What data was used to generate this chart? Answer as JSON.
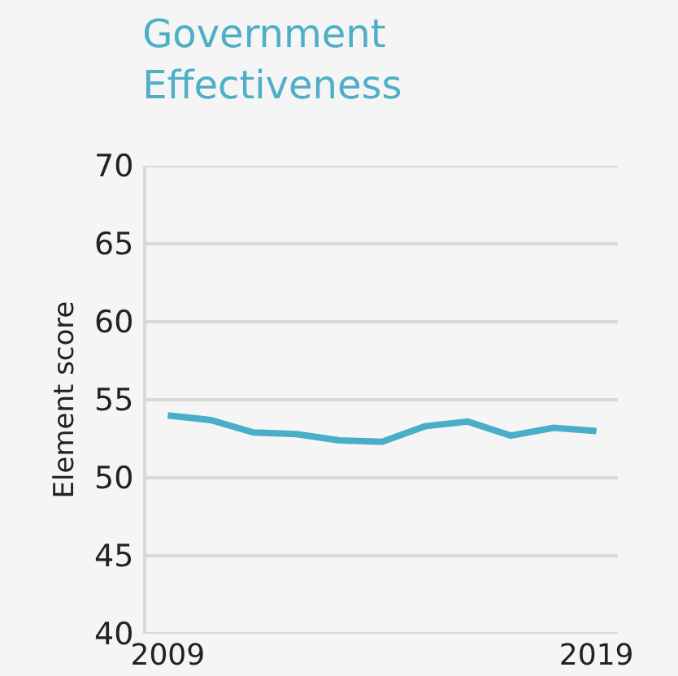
{
  "chart_data": {
    "type": "line",
    "title": "Government Effectiveness",
    "ylabel": "Element score",
    "x": [
      2009,
      2010,
      2011,
      2012,
      2013,
      2014,
      2015,
      2016,
      2017,
      2018,
      2019
    ],
    "series": [
      {
        "color": "#4aaec8",
        "values": [
          54.0,
          53.7,
          52.9,
          52.8,
          52.4,
          52.3,
          53.3,
          53.6,
          52.7,
          53.2,
          53.0
        ]
      }
    ],
    "xlim": [
      2008.5,
      2019.5
    ],
    "xticks": [
      2009,
      2019
    ],
    "ylim": [
      40,
      70
    ],
    "yticks": [
      40,
      45,
      50,
      55,
      60,
      65,
      70
    ],
    "grid": "y",
    "marker": "none",
    "line_style": "solid"
  }
}
